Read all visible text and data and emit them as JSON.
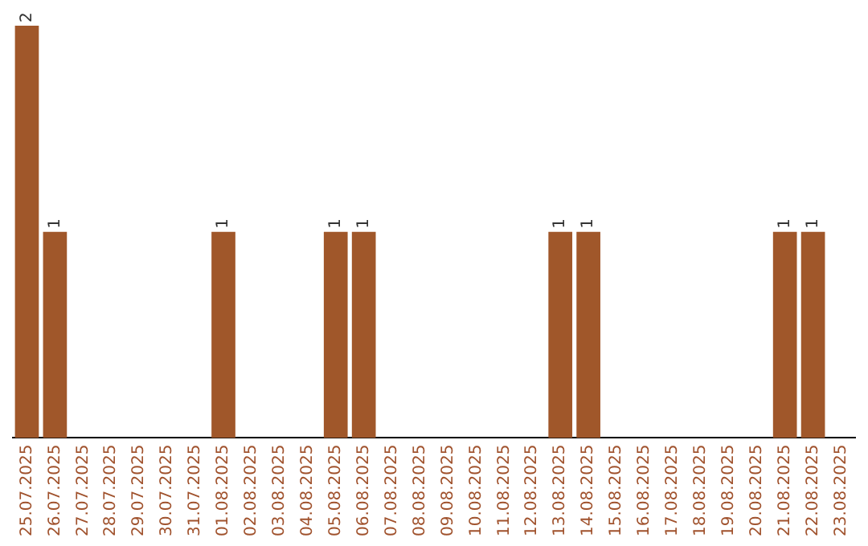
{
  "chart_data": {
    "type": "bar",
    "categories": [
      "25.07.2025",
      "26.07.2025",
      "27.07.2025",
      "28.07.2025",
      "29.07.2025",
      "30.07.2025",
      "31.07.2025",
      "01.08.2025",
      "02.08.2025",
      "03.08.2025",
      "04.08.2025",
      "05.08.2025",
      "06.08.2025",
      "07.08.2025",
      "08.08.2025",
      "09.08.2025",
      "10.08.2025",
      "11.08.2025",
      "12.08.2025",
      "13.08.2025",
      "14.08.2025",
      "15.08.2025",
      "16.08.2025",
      "17.08.2025",
      "18.08.2025",
      "19.08.2025",
      "20.08.2025",
      "21.08.2025",
      "22.08.2025",
      "23.08.2025"
    ],
    "values": [
      2,
      1,
      0,
      0,
      0,
      0,
      0,
      1,
      0,
      0,
      0,
      1,
      1,
      0,
      0,
      0,
      0,
      0,
      0,
      1,
      1,
      0,
      0,
      0,
      0,
      0,
      0,
      1,
      1,
      0
    ],
    "value_labels": [
      "2",
      "1",
      null,
      null,
      null,
      null,
      null,
      "1",
      null,
      null,
      null,
      "1",
      "1",
      null,
      null,
      null,
      null,
      null,
      null,
      "1",
      "1",
      null,
      null,
      null,
      null,
      null,
      null,
      "1",
      "1",
      null
    ],
    "color": "#a0572a",
    "grid": false,
    "legend": false
  }
}
